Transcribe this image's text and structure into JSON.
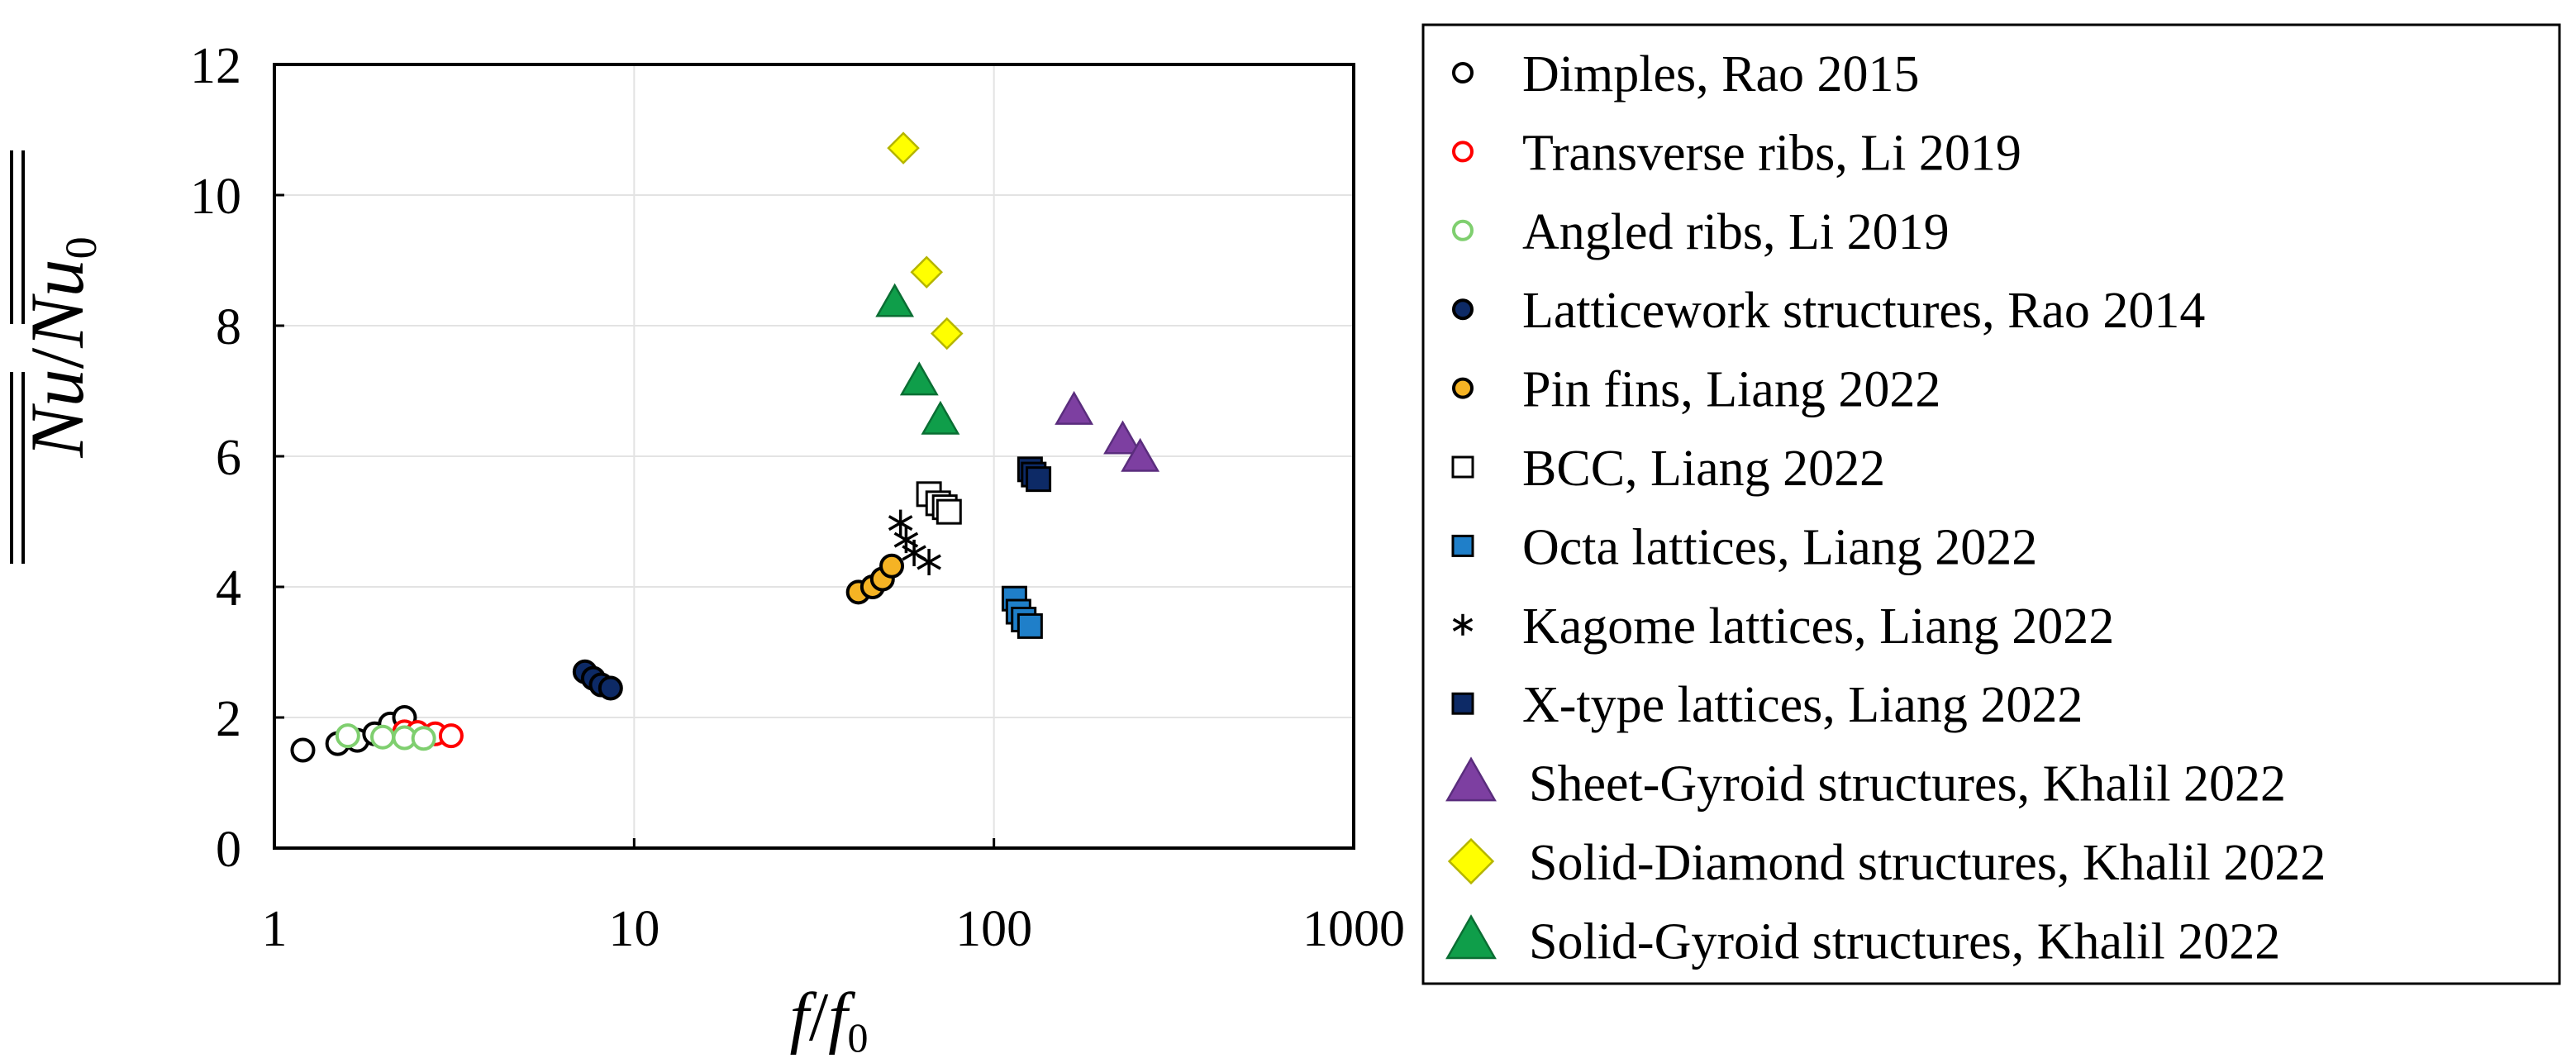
{
  "chart_data": {
    "type": "scatter",
    "title": "",
    "x_scale": "log",
    "xlim": [
      1,
      1000
    ],
    "ylim": [
      0,
      12
    ],
    "xticks": [
      1,
      10,
      100,
      1000
    ],
    "xtick_labels": [
      "1",
      "10",
      "100",
      "1000"
    ],
    "yticks": [
      0,
      2,
      4,
      6,
      8,
      10,
      12
    ],
    "ytick_labels": [
      "0",
      "2",
      "4",
      "6",
      "8",
      "10",
      "12"
    ],
    "grid": true,
    "legend_position": "right, outside plot",
    "xlabel": {
      "f": "f",
      "slash": "/",
      "f0_base": "f",
      "f0_sub": "0"
    },
    "ylabel": {
      "nu": "Nu",
      "slash": "/",
      "nu0_base": "Nu",
      "nu0_sub": "0",
      "overline": "double"
    },
    "series": [
      {
        "name": "Dimples, Rao 2015",
        "marker": "circle",
        "fill": "#ffffff",
        "stroke": "#000000",
        "x": [
          1.2,
          1.5,
          1.7,
          1.9,
          2.1,
          2.3
        ],
        "y": [
          1.5,
          1.6,
          1.65,
          1.75,
          1.9,
          2.0
        ]
      },
      {
        "name": "Transverse ribs, Li 2019",
        "marker": "circle",
        "fill": "#ffffff",
        "stroke": "#ff0000",
        "x": [
          2.3,
          2.5,
          2.8,
          3.1
        ],
        "y": [
          1.78,
          1.77,
          1.75,
          1.72
        ]
      },
      {
        "name": "Angled ribs, Li 2019",
        "marker": "circle",
        "fill": "#ffffff",
        "stroke": "#7fcf6f",
        "x": [
          1.6,
          2.0,
          2.3,
          2.6
        ],
        "y": [
          1.72,
          1.7,
          1.69,
          1.68
        ]
      },
      {
        "name": "Latticework structures, Rao 2014",
        "marker": "circle",
        "fill": "#0d2a66",
        "stroke": "#000000",
        "x": [
          7.3,
          7.7,
          8.1,
          8.6
        ],
        "y": [
          2.7,
          2.6,
          2.5,
          2.45
        ]
      },
      {
        "name": "Pin fins, Liang 2022",
        "marker": "circle",
        "fill": "#f5b324",
        "stroke": "#000000",
        "x": [
          42,
          46,
          49,
          52
        ],
        "y": [
          3.92,
          4.0,
          4.12,
          4.32
        ]
      },
      {
        "name": "BCC, Liang 2022",
        "marker": "square",
        "fill": "#ffffff",
        "stroke": "#000000",
        "x": [
          66,
          70,
          73,
          75
        ],
        "y": [
          5.42,
          5.28,
          5.22,
          5.15
        ]
      },
      {
        "name": "Octa lattices, Liang 2022",
        "marker": "square",
        "fill": "#1f7fc9",
        "stroke": "#000000",
        "x": [
          114,
          117,
          121,
          126
        ],
        "y": [
          3.82,
          3.62,
          3.5,
          3.4
        ]
      },
      {
        "name": "Kagome lattices, Liang 2022",
        "marker": "asterisk",
        "fill": "none",
        "stroke": "#000000",
        "x": [
          55,
          57,
          60,
          66
        ],
        "y": [
          4.98,
          4.72,
          4.52,
          4.38
        ]
      },
      {
        "name": "X-type lattices, Liang 2022",
        "marker": "square",
        "fill": "#0d2a66",
        "stroke": "#000000",
        "x": [
          126,
          129,
          133
        ],
        "y": [
          5.8,
          5.72,
          5.65
        ]
      },
      {
        "name": "Sheet-Gyroid structures, Khalil 2022",
        "marker": "triangle",
        "fill": "#7d3fa1",
        "stroke": "#5a2d7d",
        "x": [
          167,
          228,
          255
        ],
        "y": [
          6.7,
          6.25,
          5.98
        ]
      },
      {
        "name": "Solid-Diamond structures, Khalil 2022",
        "marker": "diamond",
        "fill": "#ffff00",
        "stroke": "#b5b500",
        "x": [
          56,
          65,
          74
        ],
        "y": [
          10.72,
          8.82,
          7.88
        ]
      },
      {
        "name": "Solid-Gyroid structures, Khalil 2022",
        "marker": "triangle",
        "fill": "#0f9e4a",
        "stroke": "#0a6e33",
        "x": [
          53,
          62,
          71
        ],
        "y": [
          8.35,
          7.15,
          6.55
        ]
      }
    ]
  }
}
